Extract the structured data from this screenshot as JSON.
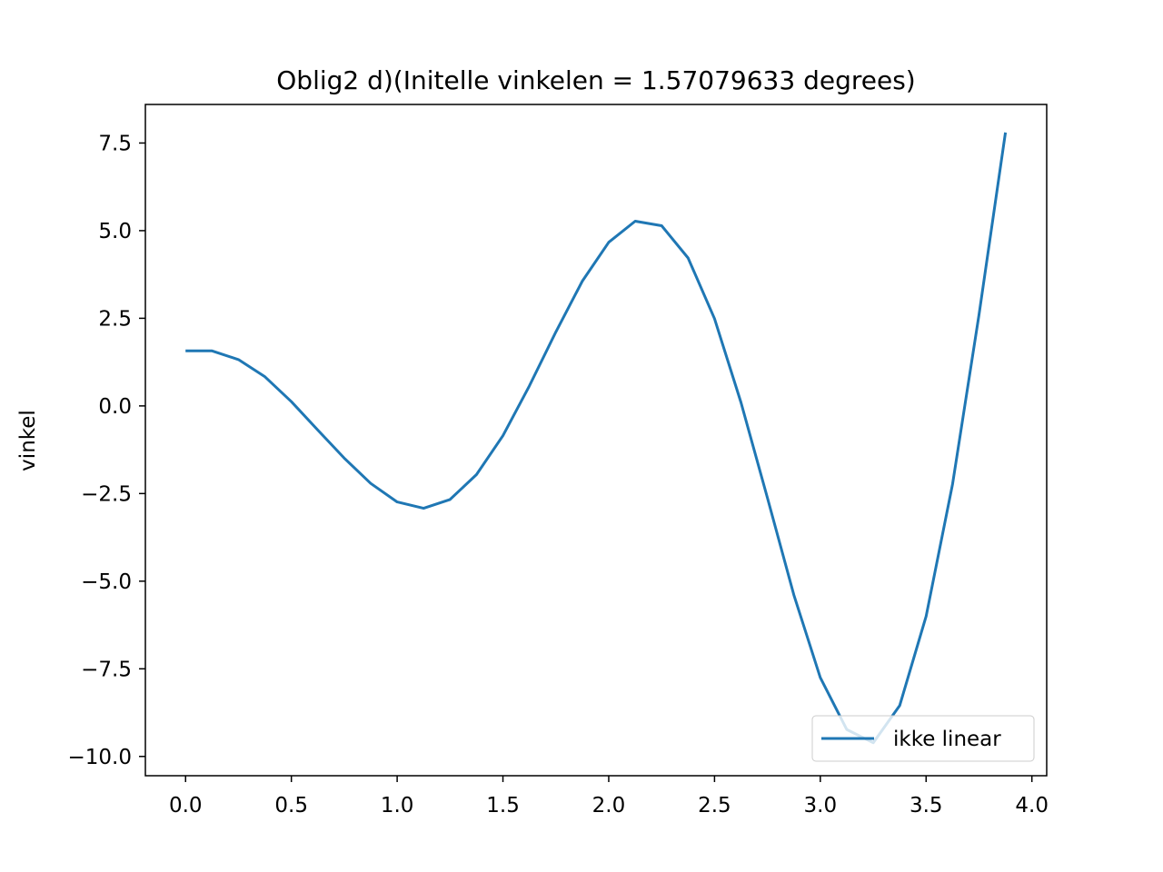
{
  "chart_data": {
    "type": "line",
    "title": "Oblig2 d)(Initelle vinkelen = 1.57079633 degrees)",
    "xlabel": "",
    "ylabel": "vinkel",
    "xlim": [
      -0.19,
      4.07
    ],
    "ylim": [
      -10.55,
      8.6
    ],
    "x_ticks": [
      0.0,
      0.5,
      1.0,
      1.5,
      2.0,
      2.5,
      3.0,
      3.5,
      4.0
    ],
    "x_tick_labels": [
      "0.0",
      "0.5",
      "1.0",
      "1.5",
      "2.0",
      "2.5",
      "3.0",
      "3.5",
      "4.0"
    ],
    "y_ticks": [
      7.5,
      5.0,
      2.5,
      0.0,
      -2.5,
      -5.0,
      -7.5,
      -10.0
    ],
    "y_tick_labels": [
      "7.5",
      "5.0",
      "2.5",
      "0.0",
      "−2.5",
      "−5.0",
      "−7.5",
      "−10.0"
    ],
    "grid": false,
    "legend_position": "lower right",
    "series": [
      {
        "name": "ikke linear",
        "color": "#1f77b4",
        "x": [
          0.0,
          0.125,
          0.25,
          0.375,
          0.5,
          0.625,
          0.75,
          0.875,
          1.0,
          1.125,
          1.25,
          1.375,
          1.5,
          1.625,
          1.75,
          1.875,
          2.0,
          2.125,
          2.25,
          2.375,
          2.5,
          2.625,
          2.75,
          2.875,
          3.0,
          3.125,
          3.25,
          3.375,
          3.5,
          3.625,
          3.75,
          3.875
        ],
        "y": [
          1.57,
          1.57,
          1.32,
          0.83,
          0.12,
          -0.69,
          -1.49,
          -2.21,
          -2.74,
          -2.92,
          -2.67,
          -1.96,
          -0.85,
          0.57,
          2.11,
          3.56,
          4.67,
          5.27,
          5.14,
          4.22,
          2.49,
          0.1,
          -2.62,
          -5.39,
          -7.75,
          -9.23,
          -9.61,
          -8.55,
          -6.0,
          -2.23,
          2.6,
          7.8
        ]
      }
    ]
  }
}
